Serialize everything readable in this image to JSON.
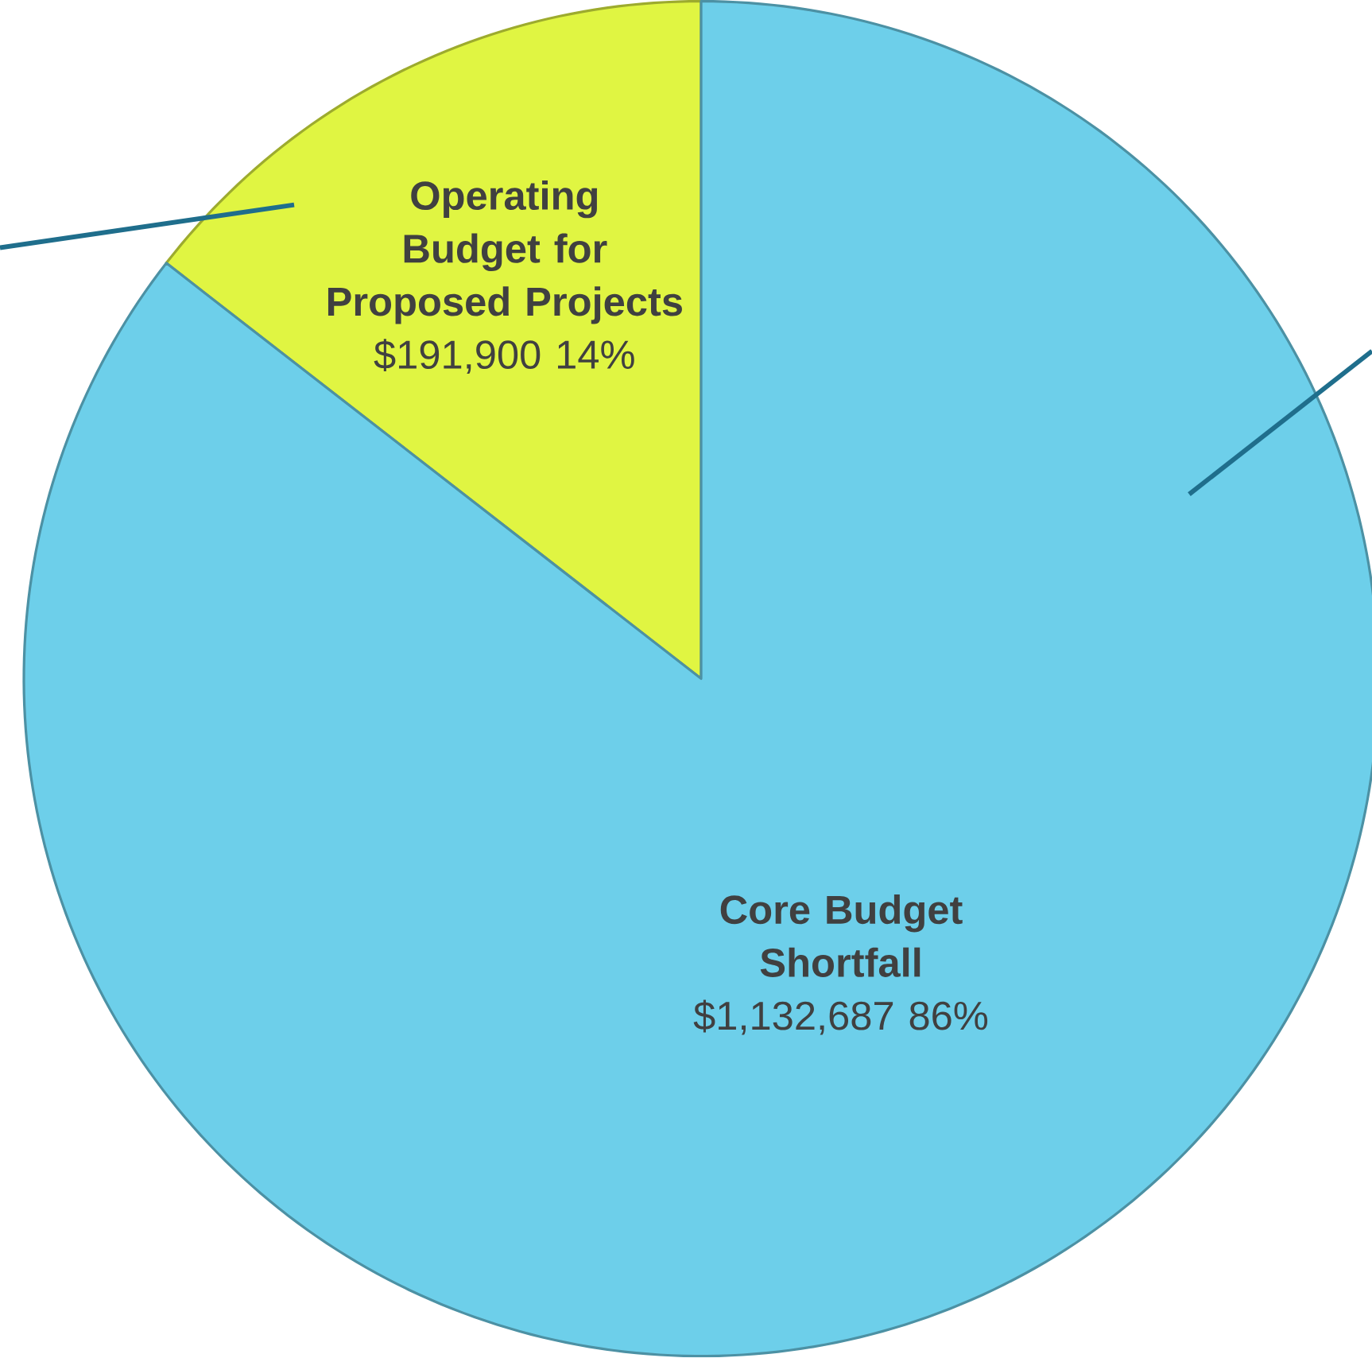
{
  "chart_data": {
    "type": "pie",
    "categories": [
      "Operating Budget for Proposed Projects",
      "Core Budget Shortfall"
    ],
    "values": [
      191900,
      1132687
    ],
    "colors": [
      "#e0f542",
      "#6dcfea"
    ],
    "value_labels": [
      "$191,900 14%",
      "$1,132,687 86%"
    ]
  }
}
